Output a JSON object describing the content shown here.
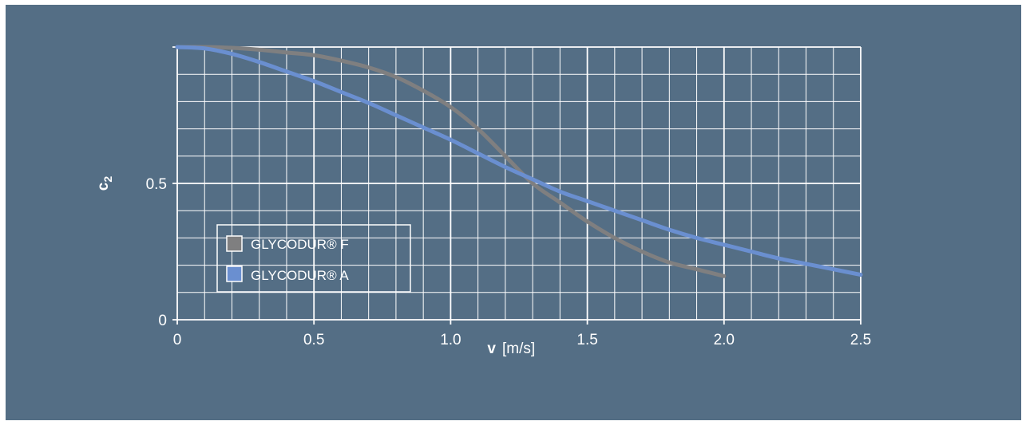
{
  "colors": {
    "background": "#546e85",
    "grid": "#ffffff",
    "series_f": "#7f7f80",
    "series_a": "#6a8fd0"
  },
  "chart_data": {
    "type": "line",
    "title": "",
    "xlabel_main": "v",
    "xlabel_unit": "[m/s]",
    "ylabel_main": "c",
    "ylabel_sub": "2",
    "xlim": [
      0,
      2.5
    ],
    "ylim": [
      0,
      1
    ],
    "x_ticks": [
      0,
      0.5,
      1.0,
      1.5,
      2.0,
      2.5
    ],
    "x_tick_labels": [
      "0",
      "0.5",
      "1.0",
      "1.5",
      "2.0",
      "2.5"
    ],
    "y_ticks": [
      0,
      0.5
    ],
    "y_tick_labels": [
      "0",
      "0.5"
    ],
    "grid": true,
    "legend_position": "lower-left",
    "series": [
      {
        "name": "GLYCODUR® F",
        "color": "#7f7f80",
        "x": [
          0,
          0.1,
          0.2,
          0.3,
          0.4,
          0.5,
          0.6,
          0.7,
          0.8,
          0.9,
          1.0,
          1.1,
          1.2,
          1.3,
          1.4,
          1.5,
          1.6,
          1.7,
          1.8,
          1.9,
          2.0
        ],
        "y": [
          1.0,
          1.0,
          0.997,
          0.99,
          0.98,
          0.97,
          0.95,
          0.925,
          0.89,
          0.84,
          0.78,
          0.7,
          0.6,
          0.5,
          0.43,
          0.36,
          0.3,
          0.25,
          0.21,
          0.185,
          0.16
        ]
      },
      {
        "name": "GLYCODUR® A",
        "color": "#6a8fd0",
        "x": [
          0,
          0.1,
          0.2,
          0.3,
          0.4,
          0.5,
          0.6,
          0.7,
          0.8,
          0.9,
          1.0,
          1.1,
          1.2,
          1.3,
          1.4,
          1.5,
          1.6,
          1.7,
          1.8,
          1.9,
          2.0,
          2.1,
          2.2,
          2.3,
          2.4,
          2.5
        ],
        "y": [
          1.0,
          0.995,
          0.975,
          0.945,
          0.91,
          0.875,
          0.835,
          0.795,
          0.75,
          0.705,
          0.66,
          0.61,
          0.56,
          0.515,
          0.47,
          0.435,
          0.4,
          0.365,
          0.33,
          0.3,
          0.275,
          0.25,
          0.225,
          0.205,
          0.185,
          0.165
        ]
      }
    ]
  }
}
